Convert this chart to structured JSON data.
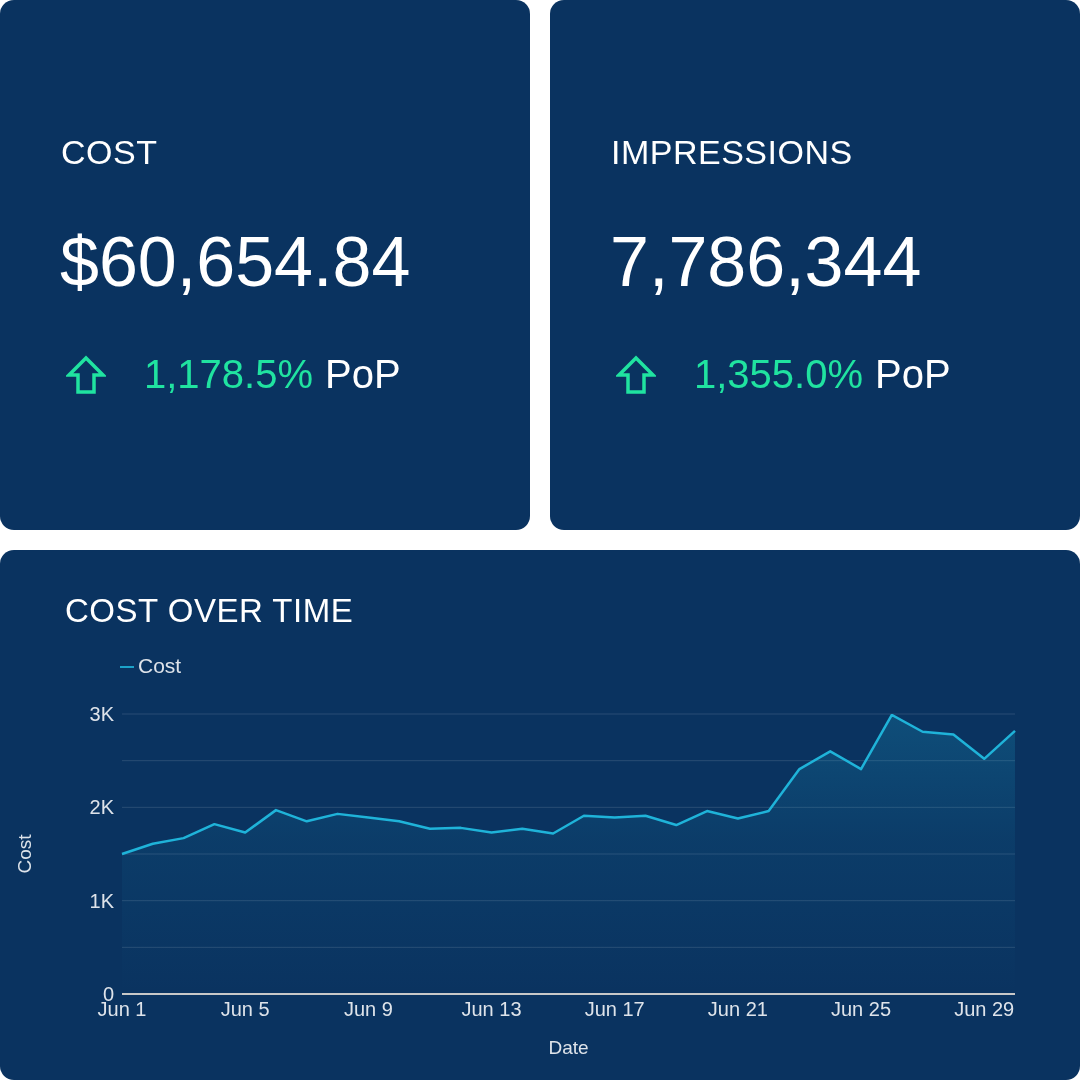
{
  "chart_data": [
    {
      "type": "other",
      "title": "COST",
      "annotations": [
        "$60,654.84",
        "1,178.5%",
        "PoP"
      ]
    },
    {
      "type": "other",
      "title": "IMPRESSIONS",
      "annotations": [
        "7,786,344",
        "1,355.0%",
        "PoP"
      ]
    },
    {
      "type": "area",
      "title": "COST OVER TIME",
      "xlabel": "Date",
      "ylabel": "Cost",
      "categories": [
        "Jun 1",
        null,
        null,
        null,
        "Jun 5",
        null,
        null,
        null,
        "Jun 9",
        null,
        null,
        null,
        "Jun 13",
        null,
        null,
        null,
        "Jun 17",
        null,
        null,
        null,
        "Jun 21",
        null,
        null,
        null,
        "Jun 25",
        null,
        null,
        null,
        "Jun 29",
        null
      ],
      "series": [
        {
          "name": "Cost",
          "color": "#1fb3d9",
          "values": [
            1500,
            1610,
            1670,
            1820,
            1730,
            1970,
            1850,
            1930,
            1890,
            1850,
            1770,
            1780,
            1730,
            1770,
            1720,
            1910,
            1890,
            1910,
            1810,
            1960,
            1880,
            1960,
            2410,
            2600,
            2410,
            2990,
            2810,
            2780,
            2520,
            2820
          ]
        }
      ],
      "ylim": [
        0,
        3000
      ],
      "yticks": [
        {
          "value": 0,
          "label": "0"
        },
        {
          "value": 500,
          "label": null
        },
        {
          "value": 1000,
          "label": "1K"
        },
        {
          "value": 1500,
          "label": null
        },
        {
          "value": 2000,
          "label": "2K"
        },
        {
          "value": 2500,
          "label": null
        },
        {
          "value": 3000,
          "label": "3K"
        }
      ],
      "grid": "y",
      "legend": "top left"
    }
  ]
}
